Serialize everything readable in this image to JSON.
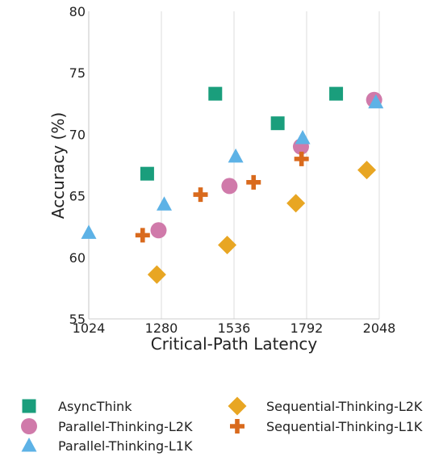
{
  "chart_data": {
    "type": "scatter",
    "xlabel": "Critical-Path Latency",
    "ylabel": "Accuracy (%)",
    "xlim": [
      1024,
      2048
    ],
    "ylim": [
      55,
      80
    ],
    "xticks": [
      "1024",
      "1280",
      "1536",
      "1792",
      "2048"
    ],
    "yticks": [
      "55",
      "60",
      "65",
      "70",
      "75",
      "80"
    ],
    "grid": "vertical",
    "legend_placement": "bottom",
    "series": [
      {
        "name": "AsyncThink",
        "marker": "square",
        "color": "#1a9e7c",
        "points": [
          {
            "x": 1230,
            "y": 66.8
          },
          {
            "x": 1470,
            "y": 73.3
          },
          {
            "x": 1690,
            "y": 70.9
          },
          {
            "x": 1896,
            "y": 73.3
          }
        ]
      },
      {
        "name": "Parallel-Thinking-L2K",
        "marker": "circle",
        "color": "#d07aaa",
        "points": [
          {
            "x": 1270,
            "y": 62.2
          },
          {
            "x": 1520,
            "y": 65.8
          },
          {
            "x": 1772,
            "y": 69.0
          },
          {
            "x": 2030,
            "y": 72.8
          }
        ]
      },
      {
        "name": "Parallel-Thinking-L1K",
        "marker": "triangle",
        "color": "#5db2e6",
        "points": [
          {
            "x": 1024,
            "y": 62.0
          },
          {
            "x": 1290,
            "y": 64.3
          },
          {
            "x": 1542,
            "y": 68.2
          },
          {
            "x": 1778,
            "y": 69.7
          },
          {
            "x": 2036,
            "y": 72.6
          }
        ]
      },
      {
        "name": "Sequential-Thinking-L2K",
        "marker": "diamond",
        "color": "#e8a623",
        "points": [
          {
            "x": 1264,
            "y": 58.6
          },
          {
            "x": 1512,
            "y": 61.0
          },
          {
            "x": 1754,
            "y": 64.4
          },
          {
            "x": 2004,
            "y": 67.1
          }
        ]
      },
      {
        "name": "Sequential-Thinking-L1K",
        "marker": "plus",
        "color": "#d96a1d",
        "points": [
          {
            "x": 1214,
            "y": 61.8
          },
          {
            "x": 1418,
            "y": 65.1
          },
          {
            "x": 1605,
            "y": 66.1
          },
          {
            "x": 1774,
            "y": 68.0
          }
        ]
      }
    ]
  }
}
